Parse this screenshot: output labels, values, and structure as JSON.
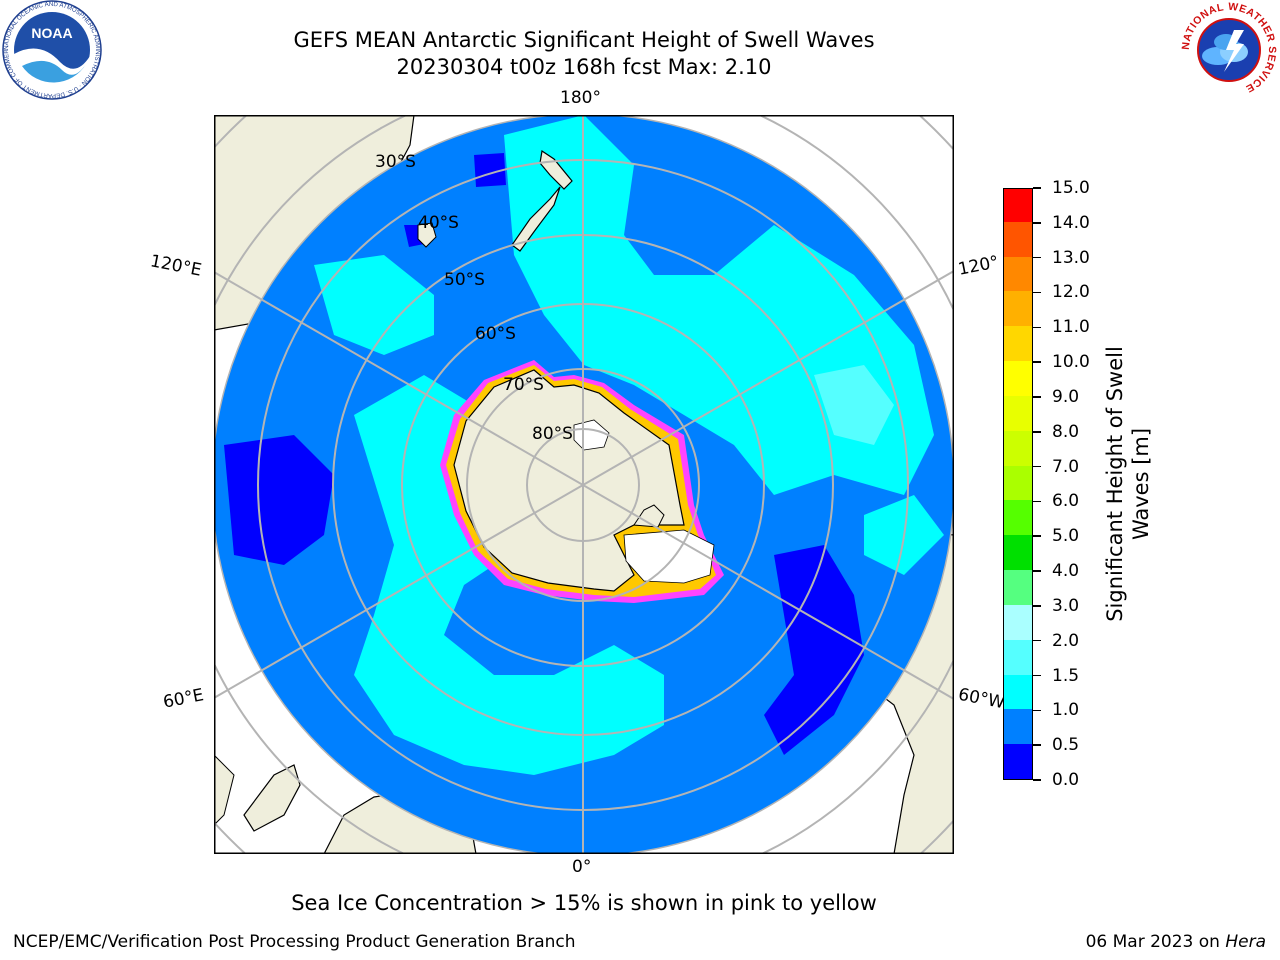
{
  "title": {
    "line1": "GEFS MEAN Antarctic Significant Height of Swell Waves",
    "line2": "20230304 t00z 168h fcst   Max: 2.10"
  },
  "logos": {
    "left": "noaa-logo",
    "left_text": "NOAA",
    "left_ring_text": "NATIONAL OCEANIC AND ATMOSPHERIC ADMINISTRATION · U.S. DEPARTMENT OF COMMERCE",
    "right": "national-weather-service-logo",
    "right_ring_text": "NATIONAL WEATHER SERVICE"
  },
  "map": {
    "projection": "south-polar-stereographic",
    "longitude_labels": {
      "top": "180°",
      "bottom": "0°",
      "upper_left": "120°E",
      "upper_right": "120°",
      "lower_left": "60°E",
      "lower_right": "60°W"
    },
    "latitude_labels": [
      "30°S",
      "40°S",
      "50°S",
      "60°S",
      "70°S",
      "80°S"
    ],
    "colors": {
      "land": "#efeedc",
      "coast": "#000000",
      "grid": "#b4b4b4",
      "ice_edge": [
        "#ff44ff",
        "#ffc800"
      ]
    }
  },
  "colorbar": {
    "title": "Significant Height of Swell Waves [m]",
    "title_line1": "Significant Height of Swell",
    "title_line2": "Waves [m]",
    "bounds": [
      0.0,
      0.5,
      1.0,
      1.5,
      2.0,
      3.0,
      4.0,
      5.0,
      6.0,
      7.0,
      8.0,
      9.0,
      10.0,
      11.0,
      12.0,
      13.0,
      14.0,
      15.0
    ],
    "tick_labels": [
      "0.0",
      "0.5",
      "1.0",
      "1.5",
      "2.0",
      "3.0",
      "4.0",
      "5.0",
      "6.0",
      "7.0",
      "8.0",
      "9.0",
      "10.0",
      "11.0",
      "12.0",
      "13.0",
      "14.0",
      "15.0"
    ],
    "colors": [
      "#0000ff",
      "#0080ff",
      "#00ffff",
      "#55ffff",
      "#aaffff",
      "#55ff80",
      "#00e000",
      "#55ff00",
      "#aaff00",
      "#ccff00",
      "#e8ff00",
      "#ffff00",
      "#ffd700",
      "#ffb000",
      "#ff8800",
      "#ff5500",
      "#ff0000"
    ]
  },
  "notes": {
    "ice": "Sea Ice Concentration > 15% is shown in pink to yellow"
  },
  "footer": {
    "left": "NCEP/EMC/Verification Post Processing Product Generation Branch",
    "right_date": "06 Mar 2023 on ",
    "right_machine": "Hera"
  }
}
